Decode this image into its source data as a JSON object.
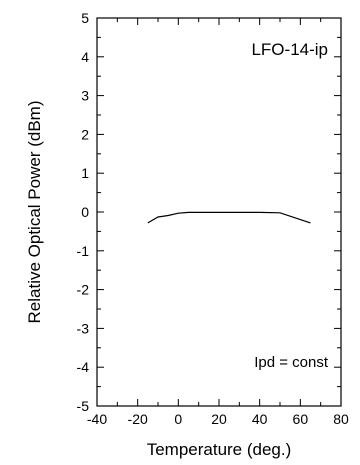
{
  "chart_data": {
    "type": "line",
    "title": "",
    "xlabel": "Temperature (deg.)",
    "ylabel": "Relative Optical Power (dBm)",
    "xlim": [
      -40,
      80
    ],
    "ylim": [
      -5,
      5
    ],
    "xticks": [
      -40,
      -20,
      0,
      20,
      40,
      60,
      80
    ],
    "yticks": [
      -5,
      -4,
      -3,
      -2,
      -1,
      0,
      1,
      2,
      3,
      4,
      5
    ],
    "grid": false,
    "legend": "none",
    "annotations": [
      "LFO-14-ip",
      "Ipd = const"
    ],
    "series": [
      {
        "x": [
          -15,
          -10,
          -5,
          0,
          5,
          10,
          20,
          30,
          40,
          50,
          65
        ],
        "y": [
          -0.28,
          -0.13,
          -0.09,
          -0.03,
          -0.01,
          -0.01,
          -0.01,
          -0.01,
          -0.01,
          -0.02,
          -0.28
        ]
      }
    ]
  }
}
